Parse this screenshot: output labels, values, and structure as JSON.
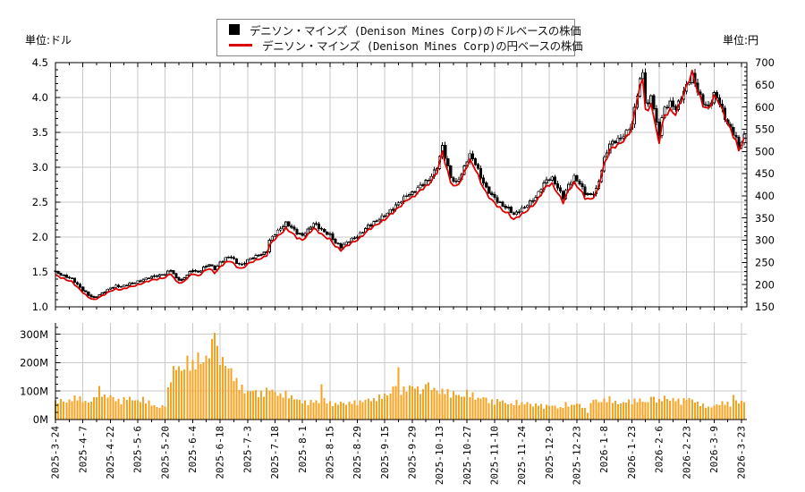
{
  "units": {
    "left": "単位:ドル",
    "right": "単位:円"
  },
  "legend": {
    "series": [
      {
        "swatch": "black-square",
        "color": "#000000",
        "label": "デニソン・マインズ (Denison Mines Corp)のドルベースの株価"
      },
      {
        "swatch": "red-line",
        "color": "#dd0000",
        "label": "デニソン・マインズ (Denison Mines Corp)の円ベースの株価"
      }
    ]
  },
  "chart_data": {
    "type": "candlestick+line+volume",
    "title": "",
    "xlabel": "",
    "ylabel_left": "単位:ドル",
    "ylabel_right": "単位:円",
    "x_tick_labels": [
      "2025-3-24",
      "2025-4-7",
      "2025-4-22",
      "2025-5-6",
      "2025-5-20",
      "2025-6-4",
      "2025-6-18",
      "2025-7-3",
      "2025-7-18",
      "2025-8-1",
      "2025-8-15",
      "2025-8-29",
      "2025-9-15",
      "2025-9-29",
      "2025-10-13",
      "2025-10-27",
      "2025-11-10",
      "2025-11-24",
      "2025-12-9",
      "2025-12-23",
      "2026-1-8",
      "2026-1-23",
      "2026-2-6",
      "2026-2-23",
      "2026-3-9",
      "2026-3-23"
    ],
    "trading_days_per_tick": 10,
    "total_days": 252,
    "grid": true,
    "legend_position": "top-center",
    "usd_axis": {
      "min": 1.0,
      "max": 4.5,
      "tick_labels": [
        "1.0",
        "1.5",
        "2.0",
        "2.5",
        "3.0",
        "3.5",
        "4.0",
        "4.5"
      ],
      "minor_step": 0.1
    },
    "yen_axis": {
      "min": 150,
      "max": 700,
      "tick_labels": [
        "150",
        "200",
        "250",
        "300",
        "350",
        "400",
        "450",
        "500",
        "550",
        "600",
        "650",
        "700"
      ],
      "minor_step": 10
    },
    "volume_axis": {
      "min": 0,
      "tick_labels": [
        "0M",
        "100M",
        "200M",
        "300M"
      ],
      "minor_step": 25
    },
    "usd_close_anchors": [
      [
        0,
        1.5
      ],
      [
        2,
        1.46
      ],
      [
        4,
        1.43
      ],
      [
        6,
        1.4
      ],
      [
        8,
        1.32
      ],
      [
        10,
        1.24
      ],
      [
        12,
        1.17
      ],
      [
        14,
        1.13
      ],
      [
        16,
        1.17
      ],
      [
        18,
        1.22
      ],
      [
        20,
        1.27
      ],
      [
        22,
        1.3
      ],
      [
        24,
        1.29
      ],
      [
        26,
        1.32
      ],
      [
        28,
        1.34
      ],
      [
        30,
        1.36
      ],
      [
        32,
        1.39
      ],
      [
        34,
        1.42
      ],
      [
        36,
        1.44
      ],
      [
        38,
        1.45
      ],
      [
        40,
        1.47
      ],
      [
        42,
        1.53
      ],
      [
        44,
        1.41
      ],
      [
        46,
        1.38
      ],
      [
        48,
        1.46
      ],
      [
        50,
        1.53
      ],
      [
        52,
        1.49
      ],
      [
        54,
        1.56
      ],
      [
        56,
        1.61
      ],
      [
        58,
        1.54
      ],
      [
        60,
        1.63
      ],
      [
        62,
        1.7
      ],
      [
        64,
        1.72
      ],
      [
        66,
        1.63
      ],
      [
        68,
        1.6
      ],
      [
        70,
        1.67
      ],
      [
        72,
        1.71
      ],
      [
        74,
        1.74
      ],
      [
        76,
        1.77
      ],
      [
        77,
        1.8
      ],
      [
        78,
        1.95
      ],
      [
        80,
        2.05
      ],
      [
        82,
        2.12
      ],
      [
        84,
        2.2
      ],
      [
        86,
        2.14
      ],
      [
        88,
        2.06
      ],
      [
        90,
        2.02
      ],
      [
        92,
        2.1
      ],
      [
        94,
        2.2
      ],
      [
        96,
        2.14
      ],
      [
        98,
        2.07
      ],
      [
        100,
        2.03
      ],
      [
        102,
        1.92
      ],
      [
        104,
        1.86
      ],
      [
        106,
        1.92
      ],
      [
        108,
        1.97
      ],
      [
        110,
        2.01
      ],
      [
        112,
        2.08
      ],
      [
        114,
        2.16
      ],
      [
        116,
        2.21
      ],
      [
        118,
        2.26
      ],
      [
        120,
        2.31
      ],
      [
        122,
        2.38
      ],
      [
        124,
        2.45
      ],
      [
        126,
        2.52
      ],
      [
        128,
        2.6
      ],
      [
        130,
        2.63
      ],
      [
        132,
        2.7
      ],
      [
        134,
        2.77
      ],
      [
        136,
        2.82
      ],
      [
        139,
        3.0
      ],
      [
        141,
        3.3
      ],
      [
        142,
        3.15
      ],
      [
        144,
        2.85
      ],
      [
        146,
        2.78
      ],
      [
        148,
        2.9
      ],
      [
        150,
        3.1
      ],
      [
        151,
        3.18
      ],
      [
        153,
        3.06
      ],
      [
        155,
        2.86
      ],
      [
        157,
        2.7
      ],
      [
        159,
        2.6
      ],
      [
        161,
        2.52
      ],
      [
        163,
        2.45
      ],
      [
        165,
        2.41
      ],
      [
        167,
        2.32
      ],
      [
        169,
        2.38
      ],
      [
        171,
        2.43
      ],
      [
        173,
        2.5
      ],
      [
        175,
        2.57
      ],
      [
        177,
        2.7
      ],
      [
        179,
        2.82
      ],
      [
        181,
        2.84
      ],
      [
        183,
        2.71
      ],
      [
        185,
        2.57
      ],
      [
        187,
        2.75
      ],
      [
        189,
        2.86
      ],
      [
        191,
        2.77
      ],
      [
        193,
        2.63
      ],
      [
        195,
        2.6
      ],
      [
        197,
        2.68
      ],
      [
        198,
        2.8
      ],
      [
        200,
        3.12
      ],
      [
        202,
        3.33
      ],
      [
        204,
        3.38
      ],
      [
        206,
        3.42
      ],
      [
        208,
        3.5
      ],
      [
        210,
        3.62
      ],
      [
        212,
        4.05
      ],
      [
        213,
        4.25
      ],
      [
        214,
        4.35
      ],
      [
        215,
        3.95
      ],
      [
        216,
        3.88
      ],
      [
        217,
        4.04
      ],
      [
        218,
        3.85
      ],
      [
        219,
        3.62
      ],
      [
        220,
        3.48
      ],
      [
        221,
        3.7
      ],
      [
        222,
        3.85
      ],
      [
        224,
        3.92
      ],
      [
        226,
        3.84
      ],
      [
        228,
        4.0
      ],
      [
        230,
        4.17
      ],
      [
        232,
        4.32
      ],
      [
        234,
        4.1
      ],
      [
        236,
        3.92
      ],
      [
        238,
        3.86
      ],
      [
        240,
        4.05
      ],
      [
        242,
        3.93
      ],
      [
        244,
        3.7
      ],
      [
        246,
        3.55
      ],
      [
        248,
        3.42
      ],
      [
        249,
        3.27
      ],
      [
        250,
        3.38
      ],
      [
        251,
        3.45
      ]
    ],
    "yen_fx_rate_anchors": [
      [
        0,
        148
      ],
      [
        20,
        146
      ],
      [
        40,
        147
      ],
      [
        60,
        147
      ],
      [
        80,
        148
      ],
      [
        100,
        149
      ],
      [
        120,
        150
      ],
      [
        141,
        151
      ],
      [
        150,
        151
      ],
      [
        160,
        150
      ],
      [
        170,
        149
      ],
      [
        180,
        150
      ],
      [
        190,
        150
      ],
      [
        200,
        151
      ],
      [
        210,
        152
      ],
      [
        214,
        152
      ],
      [
        220,
        150
      ],
      [
        226,
        152
      ],
      [
        232,
        157
      ],
      [
        236,
        154
      ],
      [
        240,
        154
      ],
      [
        244,
        156
      ],
      [
        248,
        153
      ],
      [
        251,
        153
      ]
    ],
    "volume_millions_anchors": [
      [
        0,
        60
      ],
      [
        2,
        68
      ],
      [
        4,
        62
      ],
      [
        6,
        72
      ],
      [
        8,
        78
      ],
      [
        10,
        68
      ],
      [
        12,
        60
      ],
      [
        14,
        72
      ],
      [
        16,
        105
      ],
      [
        18,
        80
      ],
      [
        20,
        84
      ],
      [
        22,
        70
      ],
      [
        24,
        62
      ],
      [
        26,
        78
      ],
      [
        28,
        70
      ],
      [
        30,
        65
      ],
      [
        32,
        72
      ],
      [
        34,
        60
      ],
      [
        36,
        48
      ],
      [
        38,
        42
      ],
      [
        40,
        52
      ],
      [
        42,
        150
      ],
      [
        44,
        190
      ],
      [
        46,
        170
      ],
      [
        48,
        205
      ],
      [
        50,
        185
      ],
      [
        52,
        215
      ],
      [
        54,
        200
      ],
      [
        56,
        235
      ],
      [
        57,
        255
      ],
      [
        58,
        350
      ],
      [
        59,
        230
      ],
      [
        60,
        215
      ],
      [
        62,
        195
      ],
      [
        64,
        170
      ],
      [
        66,
        130
      ],
      [
        68,
        110
      ],
      [
        70,
        95
      ],
      [
        72,
        105
      ],
      [
        74,
        88
      ],
      [
        76,
        92
      ],
      [
        78,
        110
      ],
      [
        80,
        95
      ],
      [
        82,
        85
      ],
      [
        84,
        90
      ],
      [
        86,
        78
      ],
      [
        88,
        70
      ],
      [
        90,
        62
      ],
      [
        92,
        58
      ],
      [
        94,
        66
      ],
      [
        96,
        60
      ],
      [
        97,
        128
      ],
      [
        98,
        70
      ],
      [
        100,
        58
      ],
      [
        102,
        52
      ],
      [
        104,
        60
      ],
      [
        106,
        55
      ],
      [
        108,
        62
      ],
      [
        110,
        58
      ],
      [
        112,
        65
      ],
      [
        114,
        72
      ],
      [
        116,
        68
      ],
      [
        118,
        78
      ],
      [
        120,
        85
      ],
      [
        122,
        92
      ],
      [
        124,
        130
      ],
      [
        125,
        165
      ],
      [
        126,
        100
      ],
      [
        128,
        108
      ],
      [
        130,
        118
      ],
      [
        132,
        108
      ],
      [
        134,
        95
      ],
      [
        135,
        142
      ],
      [
        136,
        118
      ],
      [
        138,
        108
      ],
      [
        140,
        95
      ],
      [
        142,
        102
      ],
      [
        144,
        88
      ],
      [
        146,
        92
      ],
      [
        148,
        78
      ],
      [
        150,
        95
      ],
      [
        152,
        85
      ],
      [
        154,
        72
      ],
      [
        156,
        80
      ],
      [
        158,
        65
      ],
      [
        160,
        60
      ],
      [
        162,
        70
      ],
      [
        164,
        58
      ],
      [
        166,
        52
      ],
      [
        168,
        62
      ],
      [
        170,
        55
      ],
      [
        172,
        60
      ],
      [
        174,
        48
      ],
      [
        176,
        55
      ],
      [
        178,
        42
      ],
      [
        180,
        52
      ],
      [
        182,
        46
      ],
      [
        184,
        40
      ],
      [
        186,
        55
      ],
      [
        188,
        48
      ],
      [
        190,
        58
      ],
      [
        192,
        45
      ],
      [
        194,
        28
      ],
      [
        196,
        75
      ],
      [
        198,
        62
      ],
      [
        200,
        68
      ],
      [
        202,
        72
      ],
      [
        204,
        60
      ],
      [
        206,
        55
      ],
      [
        208,
        65
      ],
      [
        210,
        62
      ],
      [
        212,
        70
      ],
      [
        214,
        66
      ],
      [
        216,
        58
      ],
      [
        217,
        88
      ],
      [
        218,
        72
      ],
      [
        220,
        65
      ],
      [
        222,
        78
      ],
      [
        224,
        68
      ],
      [
        226,
        72
      ],
      [
        228,
        60
      ],
      [
        230,
        75
      ],
      [
        232,
        70
      ],
      [
        234,
        58
      ],
      [
        236,
        50
      ],
      [
        238,
        42
      ],
      [
        240,
        48
      ],
      [
        242,
        55
      ],
      [
        244,
        60
      ],
      [
        246,
        52
      ],
      [
        247,
        80
      ],
      [
        248,
        70
      ],
      [
        249,
        58
      ],
      [
        250,
        62
      ],
      [
        251,
        68
      ]
    ],
    "colors": {
      "candle_outline": "#000000",
      "candle_down_fill": "#000000",
      "candle_up_fill": "#ffffff",
      "yen_line": "#dd0000",
      "volume_bar": "#f8a21d",
      "grid": "#c9c9c9",
      "axis": "#000000"
    }
  }
}
